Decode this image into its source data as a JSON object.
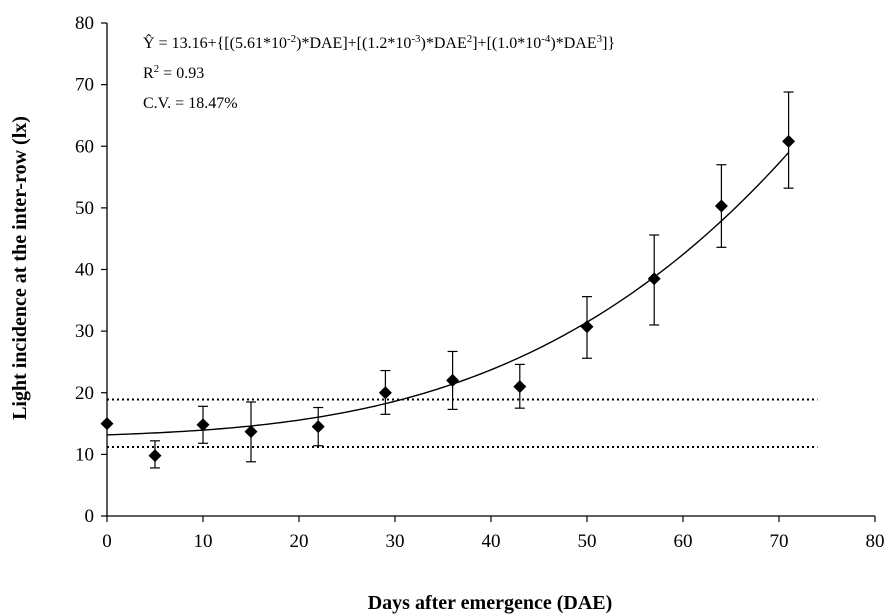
{
  "chart_data": {
    "type": "scatter",
    "xlabel": "Days after emergence (DAE)",
    "ylabel": "Light incidence at the inter-row (lx)",
    "xlim": [
      0,
      80
    ],
    "ylim": [
      0,
      80
    ],
    "x_ticks": [
      0,
      10,
      20,
      30,
      40,
      50,
      60,
      70,
      80
    ],
    "y_ticks": [
      0,
      10,
      20,
      30,
      40,
      50,
      60,
      70,
      80
    ],
    "grid": false,
    "legend": "none",
    "series": [
      {
        "marker": "diamond",
        "color": "#000000",
        "x": [
          0,
          5,
          10,
          15,
          22,
          29,
          36,
          43,
          50,
          57,
          64,
          71
        ],
        "y": [
          15.0,
          9.8,
          14.8,
          13.7,
          14.5,
          20.0,
          22.0,
          21.0,
          30.7,
          38.5,
          50.3,
          60.8
        ],
        "err_upper": [
          0,
          12.2,
          17.8,
          18.5,
          17.6,
          23.6,
          26.7,
          24.6,
          35.6,
          45.6,
          57.0,
          68.8
        ],
        "err_lower": [
          0,
          7.8,
          11.8,
          8.8,
          11.4,
          16.5,
          17.3,
          17.5,
          25.6,
          31.0,
          43.6,
          53.2
        ]
      }
    ],
    "fit": {
      "intercept": 13.16,
      "coefficients": [
        0.0561,
        0.0012,
        0.0001
      ],
      "x_range": [
        0,
        71
      ],
      "color": "#000000"
    },
    "reference_lines": [
      {
        "y": 18.9,
        "style": "dotted",
        "x_range": [
          0,
          74
        ]
      },
      {
        "y": 11.2,
        "style": "dotted",
        "x_range": [
          0,
          74
        ]
      }
    ],
    "annotations": {
      "equation": {
        "lead": "Ŷ = 13.16+{[(5.61*10",
        "sup1": "-2",
        "mid1": ")*DAE]+[(1.2*10",
        "sup2": "-3",
        "mid2": ")*DAE",
        "sup3": "2",
        "mid3": "]+[(1.0*10",
        "sup4": "-4",
        "mid4": ")*DAE",
        "sup5": "3",
        "tail": "]}"
      },
      "r2": {
        "lead": "R",
        "sup": "2",
        "tail": " = 0.93"
      },
      "cv": "C.V. = 18.47%"
    }
  }
}
